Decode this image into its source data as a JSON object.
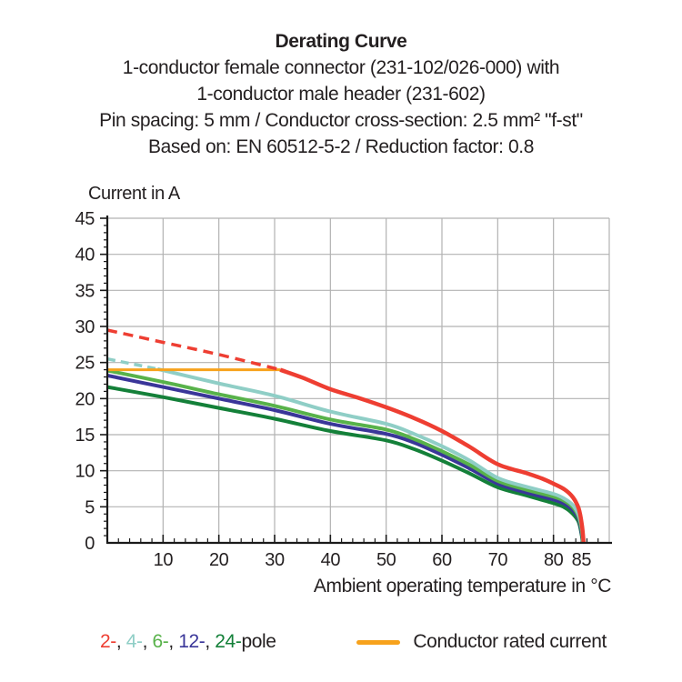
{
  "header": {
    "title": "Derating Curve",
    "subtitle_lines": [
      "1-conductor female connector (231-102/026-000) with",
      "1-conductor male header (231-602)",
      "Pin spacing: 5 mm / Conductor cross-section: 2.5 mm² \"f-st\"",
      "Based on: EN 60512-5-2 / Reduction factor: 0.8"
    ]
  },
  "chart_data": {
    "type": "line",
    "title": "Derating Curve",
    "xlabel": "Ambient operating temperature in °C",
    "ylabel": "Current in A",
    "xlim": [
      0,
      90
    ],
    "ylim": [
      0,
      45
    ],
    "grid": true,
    "grid_color": "#b2b2b2",
    "axis_color": "#1a1a1a",
    "text_color": "#231f20",
    "x_tick_labels": [
      10,
      20,
      30,
      40,
      50,
      60,
      70,
      80,
      85
    ],
    "y_tick_labels": [
      0,
      5,
      10,
      15,
      20,
      25,
      30,
      35,
      40,
      45
    ],
    "x_minor_step": 2,
    "y_minor_step": 1,
    "x_grid_step": 10,
    "y_grid_step": 5,
    "series": [
      {
        "id": "pole-24",
        "name": "24-pole",
        "color": "#148039",
        "width": 4,
        "dash": null,
        "points": [
          [
            0,
            21.6
          ],
          [
            10,
            20.2
          ],
          [
            20,
            18.7
          ],
          [
            30,
            17.2
          ],
          [
            40,
            15.5
          ],
          [
            50,
            14.2
          ],
          [
            55,
            13.0
          ],
          [
            60,
            11.4
          ],
          [
            65,
            9.6
          ],
          [
            70,
            7.7
          ],
          [
            75,
            6.6
          ],
          [
            80,
            5.5
          ],
          [
            82,
            4.9
          ],
          [
            83.5,
            4.0
          ],
          [
            84.5,
            2.9
          ],
          [
            85.0,
            1.3
          ],
          [
            85.25,
            0
          ]
        ]
      },
      {
        "id": "pole-12",
        "name": "12-pole",
        "color": "#3a3699",
        "width": 4,
        "dash": null,
        "points": [
          [
            0,
            23.2
          ],
          [
            10,
            21.6
          ],
          [
            20,
            20.0
          ],
          [
            30,
            18.4
          ],
          [
            40,
            16.5
          ],
          [
            50,
            15.1
          ],
          [
            55,
            13.9
          ],
          [
            60,
            12.2
          ],
          [
            65,
            10.3
          ],
          [
            70,
            8.2
          ],
          [
            75,
            7.0
          ],
          [
            80,
            6.0
          ],
          [
            82,
            5.4
          ],
          [
            83.5,
            4.5
          ],
          [
            84.5,
            3.3
          ],
          [
            85.0,
            1.6
          ],
          [
            85.3,
            0
          ]
        ]
      },
      {
        "id": "pole-6",
        "name": "6-pole",
        "color": "#58b24a",
        "width": 4,
        "dash": null,
        "points": [
          [
            0,
            23.9
          ],
          [
            10,
            22.3
          ],
          [
            20,
            20.6
          ],
          [
            30,
            19.0
          ],
          [
            40,
            17.1
          ],
          [
            50,
            15.7
          ],
          [
            55,
            14.4
          ],
          [
            60,
            12.7
          ],
          [
            65,
            10.8
          ],
          [
            70,
            8.6
          ],
          [
            75,
            7.4
          ],
          [
            80,
            6.4
          ],
          [
            82,
            5.8
          ],
          [
            83.5,
            4.9
          ],
          [
            84.5,
            3.6
          ],
          [
            85.05,
            1.8
          ],
          [
            85.3,
            0
          ]
        ]
      },
      {
        "id": "pole-4-dashed",
        "name": "4-pole (above rated current)",
        "color": "#8fcec6",
        "width": 3.5,
        "dash": "9 6",
        "points": [
          [
            0,
            25.5
          ],
          [
            9,
            24.1
          ]
        ]
      },
      {
        "id": "pole-4",
        "name": "4-pole",
        "color": "#8fcec6",
        "width": 4,
        "dash": null,
        "points": [
          [
            9,
            24.1
          ],
          [
            20,
            22.1
          ],
          [
            30,
            20.4
          ],
          [
            40,
            18.2
          ],
          [
            50,
            16.5
          ],
          [
            55,
            15.1
          ],
          [
            60,
            13.4
          ],
          [
            65,
            11.4
          ],
          [
            70,
            9.0
          ],
          [
            75,
            7.8
          ],
          [
            80,
            6.8
          ],
          [
            82,
            6.1
          ],
          [
            83.5,
            5.2
          ],
          [
            84.5,
            3.9
          ],
          [
            85.1,
            2.0
          ],
          [
            85.35,
            0
          ]
        ]
      },
      {
        "id": "rated-current",
        "name": "Conductor rated current",
        "color": "#f7a21c",
        "width": 3,
        "dash": null,
        "points": [
          [
            0,
            24
          ],
          [
            31,
            24
          ]
        ]
      },
      {
        "id": "pole-2-dashed",
        "name": "2-pole (above rated current)",
        "color": "#ee3e32",
        "width": 3.5,
        "dash": "11 7",
        "points": [
          [
            0,
            29.5
          ],
          [
            10,
            27.8
          ],
          [
            20,
            26.1
          ],
          [
            31,
            24.0
          ]
        ]
      },
      {
        "id": "pole-2",
        "name": "2-pole",
        "color": "#ee3e32",
        "width": 4.5,
        "dash": null,
        "points": [
          [
            31,
            24.0
          ],
          [
            35,
            22.9
          ],
          [
            40,
            21.3
          ],
          [
            45,
            20.1
          ],
          [
            50,
            18.8
          ],
          [
            55,
            17.3
          ],
          [
            60,
            15.5
          ],
          [
            65,
            13.3
          ],
          [
            70,
            10.9
          ],
          [
            75,
            9.7
          ],
          [
            78,
            8.9
          ],
          [
            80,
            8.2
          ],
          [
            82,
            7.4
          ],
          [
            83.5,
            6.3
          ],
          [
            84.5,
            4.8
          ],
          [
            85.1,
            2.5
          ],
          [
            85.4,
            0
          ]
        ]
      }
    ]
  },
  "legend": {
    "pole_items": [
      {
        "label": "2-",
        "color": "#ee3e32"
      },
      {
        "label": "4-",
        "color": "#8fcec6"
      },
      {
        "label": "6-",
        "color": "#58b24a"
      },
      {
        "label": "12-",
        "color": "#3a3699"
      },
      {
        "label": "24-",
        "color": "#148039"
      }
    ],
    "separator": ", ",
    "suffix": "pole",
    "rated": {
      "label": "Conductor rated current",
      "color": "#f7a21c"
    }
  }
}
